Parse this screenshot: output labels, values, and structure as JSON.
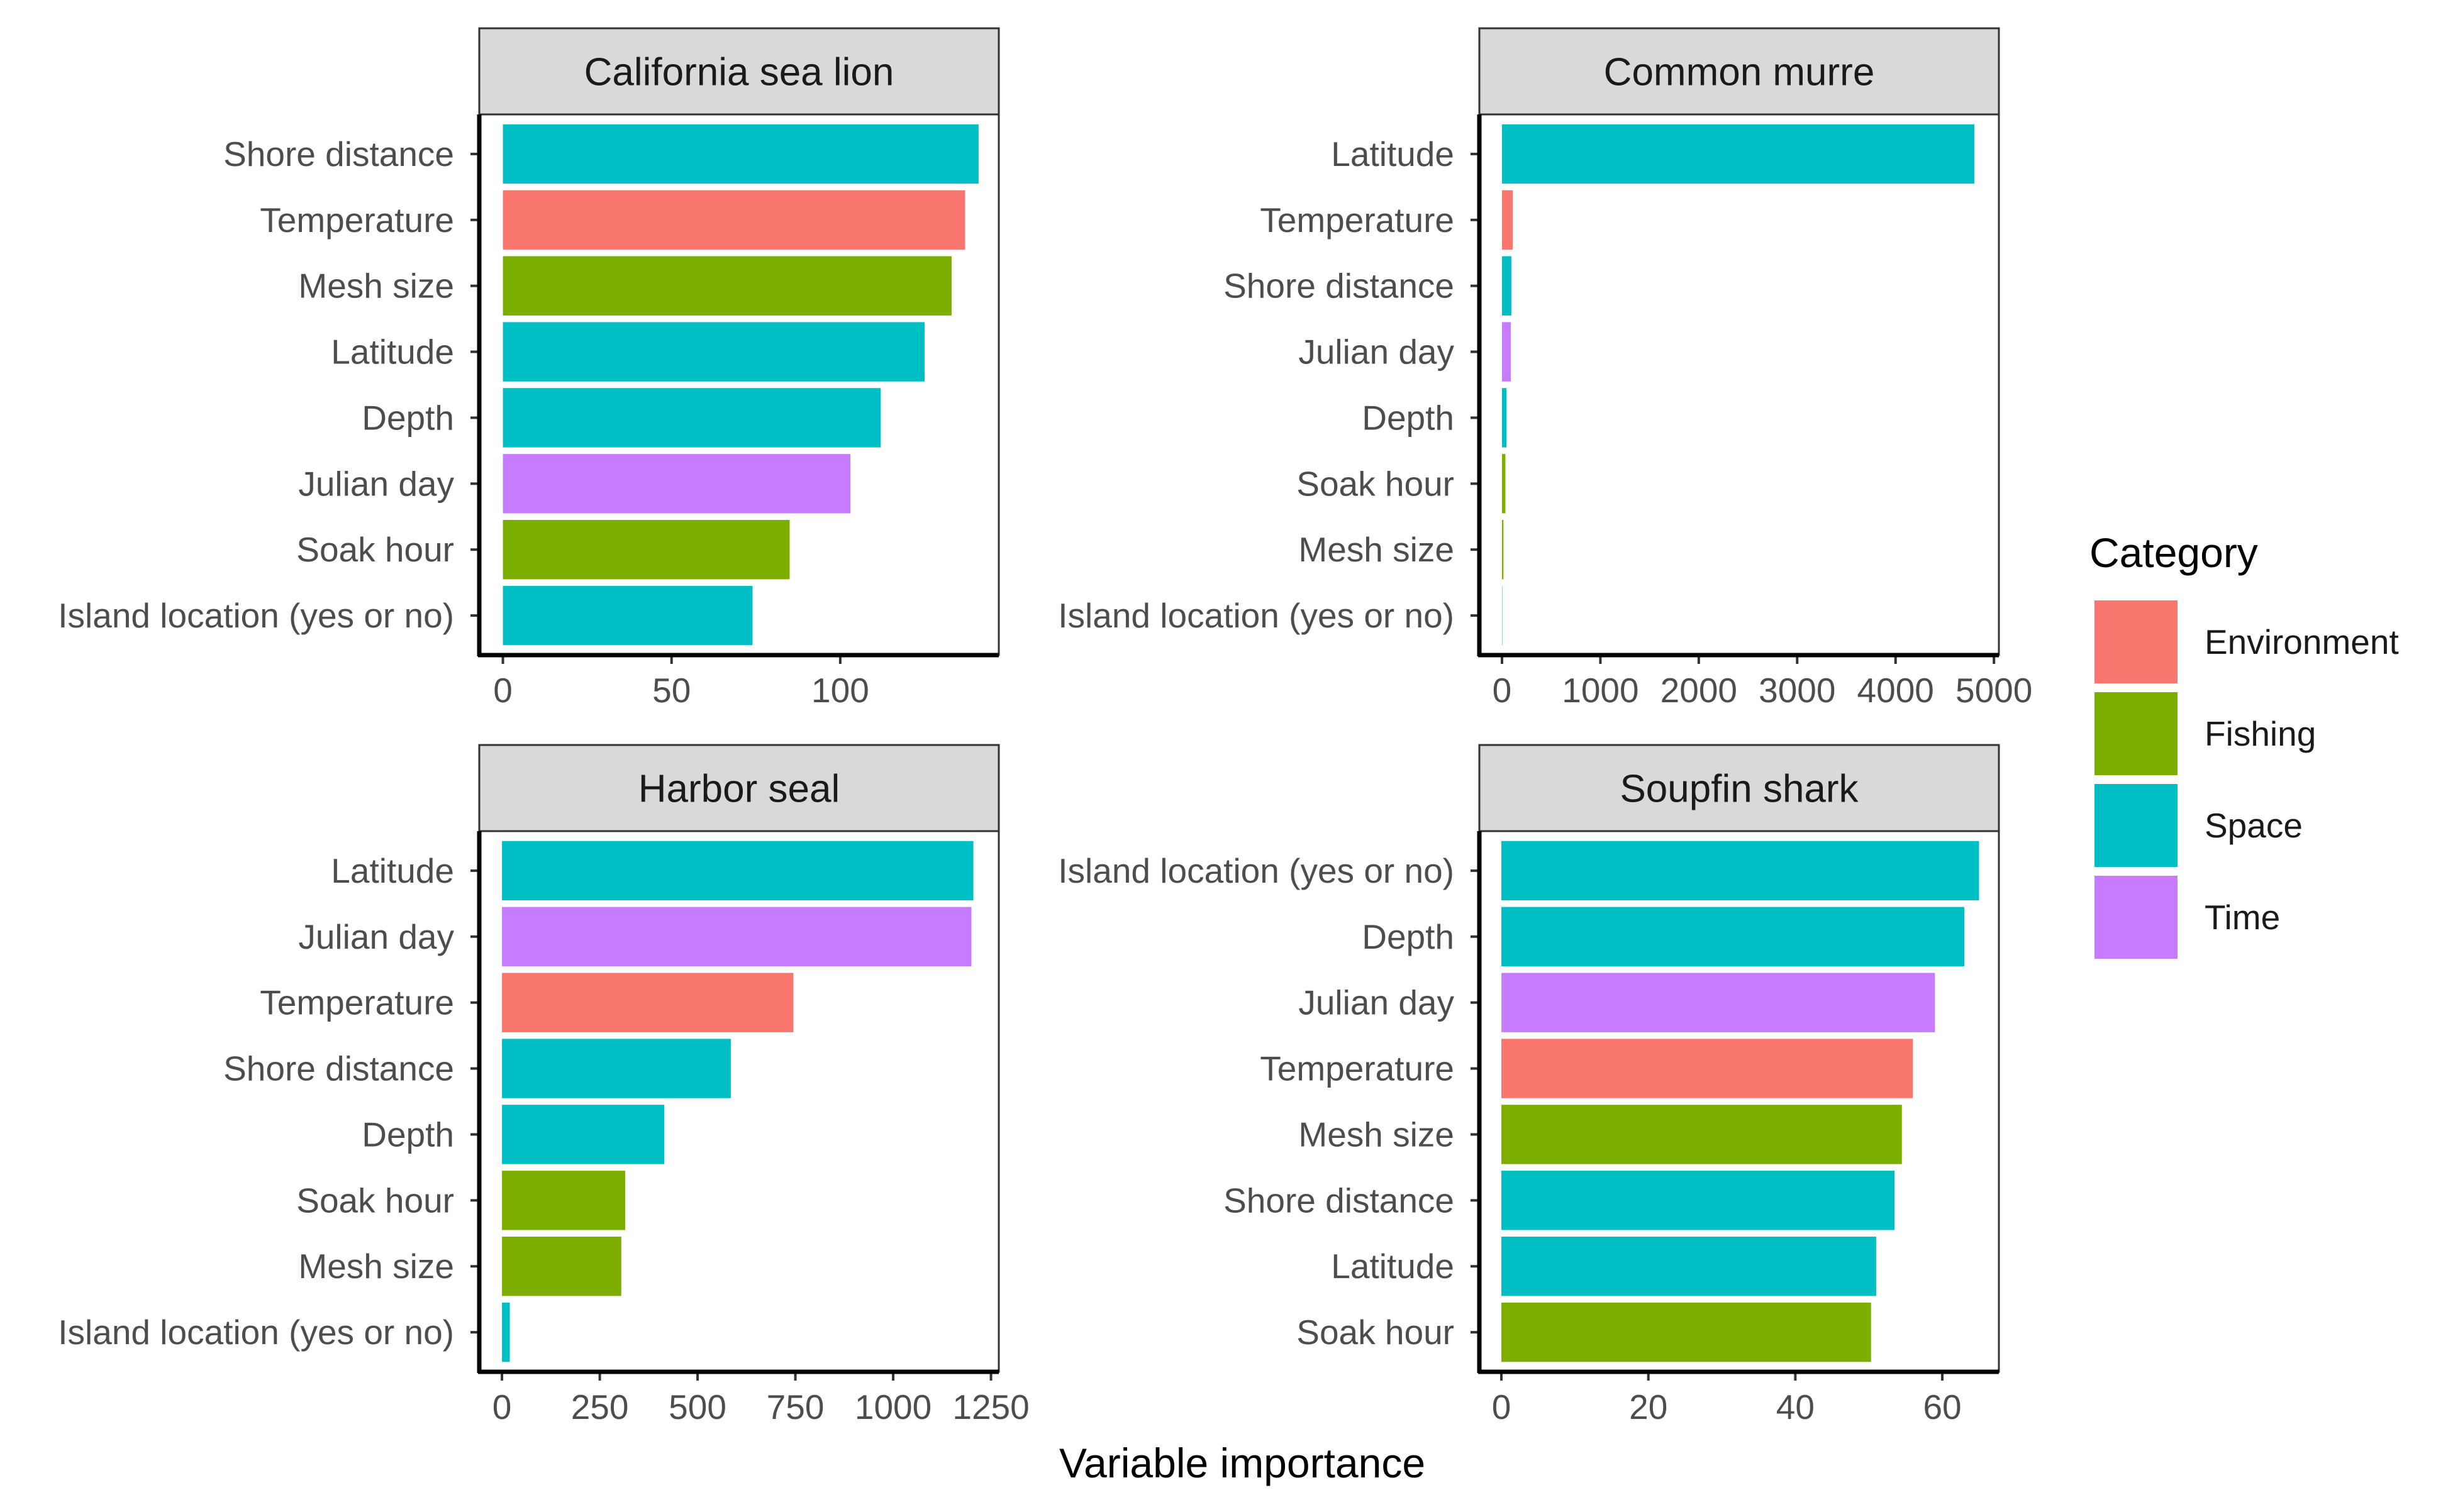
{
  "chart_data": {
    "type": "bar",
    "orientation": "horizontal",
    "xlabel": "Variable importance",
    "legend": {
      "title": "Category",
      "position": "right",
      "entries": [
        {
          "name": "Environment",
          "color": "#F8766D"
        },
        {
          "name": "Fishing",
          "color": "#7CAE00"
        },
        {
          "name": "Space",
          "color": "#00BFC4"
        },
        {
          "name": "Time",
          "color": "#C77CFF"
        }
      ]
    },
    "grid": false,
    "panels": [
      {
        "title": "California sea lion",
        "xlim": [
          -7,
          147
        ],
        "xticks": [
          "0",
          "50",
          "100"
        ],
        "categories": [
          "Shore distance",
          "Temperature",
          "Mesh size",
          "Latitude",
          "Depth",
          "Julian day",
          "Soak hour",
          "Island location (yes or no)"
        ],
        "values": [
          141,
          137,
          133,
          125,
          112,
          103,
          85,
          74
        ],
        "category_group": [
          "Space",
          "Environment",
          "Fishing",
          "Space",
          "Space",
          "Time",
          "Fishing",
          "Space"
        ]
      },
      {
        "title": "Common murre",
        "xlim": [
          -230,
          5050
        ],
        "xticks": [
          "0",
          "1000",
          "2000",
          "3000",
          "4000",
          "5000"
        ],
        "categories": [
          "Latitude",
          "Temperature",
          "Shore distance",
          "Julian day",
          "Depth",
          "Soak hour",
          "Mesh size",
          "Island location (yes or no)"
        ],
        "values": [
          4800,
          110,
          95,
          90,
          45,
          35,
          15,
          0
        ],
        "category_group": [
          "Space",
          "Environment",
          "Space",
          "Time",
          "Space",
          "Fishing",
          "Fishing",
          "Space"
        ]
      },
      {
        "title": "Harbor seal",
        "xlim": [
          -58,
          1270
        ],
        "xticks": [
          "0",
          "250",
          "500",
          "750",
          "1000",
          "1250"
        ],
        "categories": [
          "Latitude",
          "Julian day",
          "Temperature",
          "Shore distance",
          "Depth",
          "Soak hour",
          "Mesh size",
          "Island location (yes or no)"
        ],
        "values": [
          1205,
          1200,
          745,
          585,
          415,
          315,
          305,
          20
        ],
        "category_group": [
          "Space",
          "Time",
          "Environment",
          "Space",
          "Space",
          "Fishing",
          "Fishing",
          "Space"
        ]
      },
      {
        "title": "Soupfin shark",
        "xlim": [
          -3,
          67.7
        ],
        "xticks": [
          "0",
          "20",
          "40",
          "60"
        ],
        "categories": [
          "Island location (yes or no)",
          "Depth",
          "Julian day",
          "Temperature",
          "Mesh size",
          "Shore distance",
          "Latitude",
          "Soak hour"
        ],
        "values": [
          65,
          63,
          59,
          56,
          54.5,
          53.5,
          51,
          50.3
        ],
        "category_group": [
          "Space",
          "Space",
          "Time",
          "Environment",
          "Fishing",
          "Space",
          "Space",
          "Fishing"
        ]
      }
    ]
  }
}
